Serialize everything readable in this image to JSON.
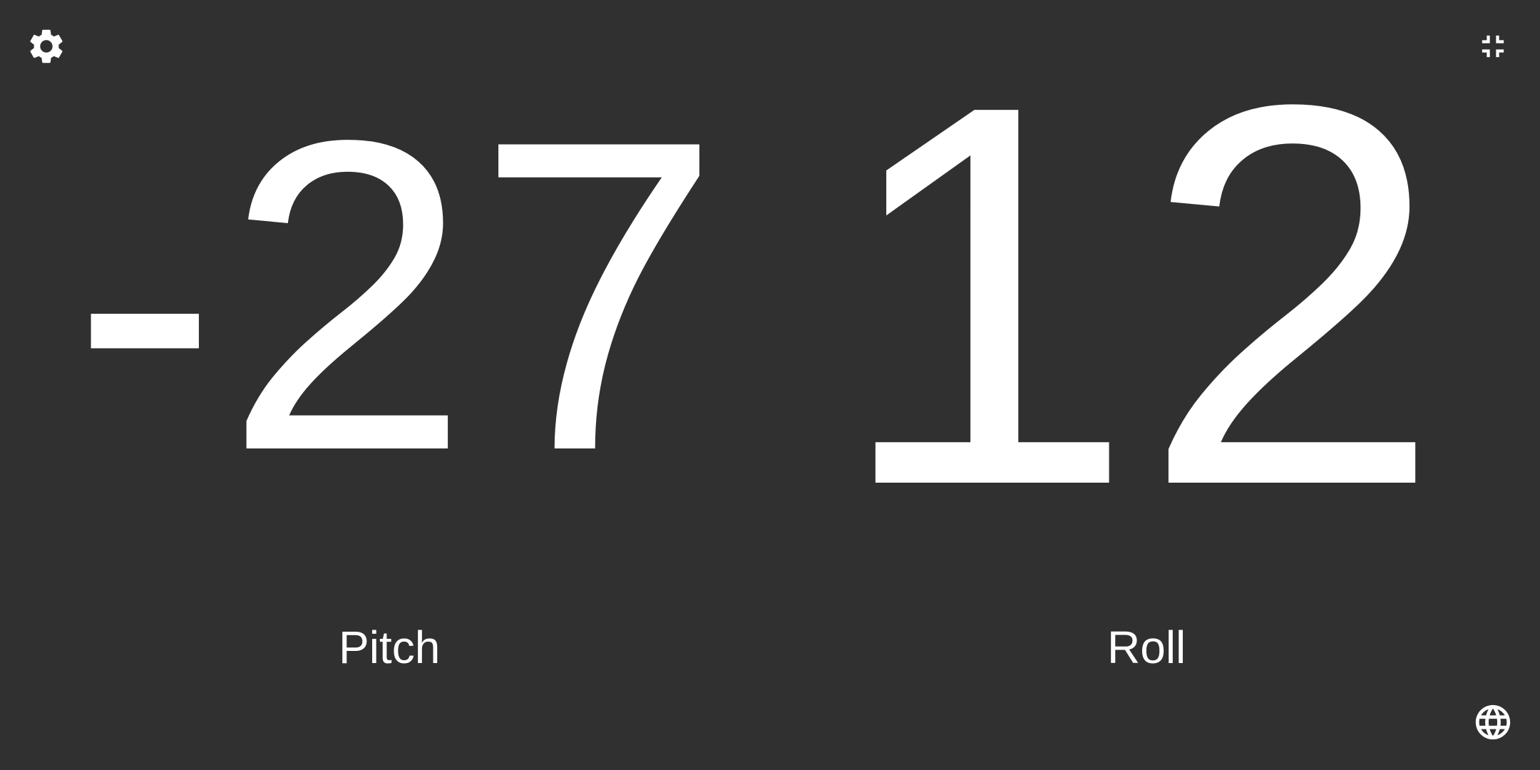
{
  "pitch": {
    "value": "-27",
    "label": "Pitch"
  },
  "roll": {
    "value": "12",
    "label": "Roll"
  },
  "icons": {
    "settings": "settings-gear-icon",
    "exit_fullscreen": "exit-fullscreen-icon",
    "language": "globe-icon"
  },
  "colors": {
    "background": "#303030",
    "foreground": "#ffffff"
  }
}
